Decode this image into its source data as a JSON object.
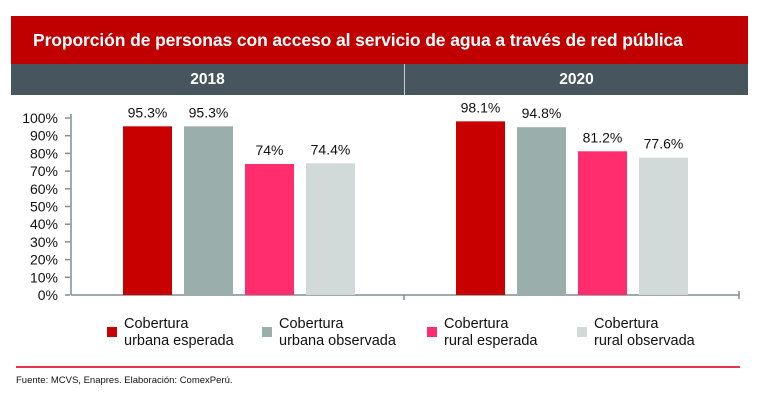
{
  "title": "Proporción de personas con acceso al servicio de agua a través de red pública",
  "source": "Fuente: MCVS, Enapres. Elaboración: ComexPerú.",
  "colors": {
    "title_bg": "#c00000",
    "year_bar_bg": "#47555e",
    "urbana_esperada": "#c80000",
    "urbana_observada": "#9aafac",
    "rural_esperada": "#ff2d6e",
    "rural_observada": "#d2dad9",
    "rule": "#e8334a"
  },
  "legend": [
    {
      "label_line1": "Cobertura",
      "label_line2": "urbana esperada",
      "color": "#c80000"
    },
    {
      "label_line1": "Cobertura",
      "label_line2": "urbana observada",
      "color": "#9aafac"
    },
    {
      "label_line1": "Cobertura",
      "label_line2": "rural esperada",
      "color": "#ff2d6e"
    },
    {
      "label_line1": "Cobertura",
      "label_line2": "rural observada",
      "color": "#d2dad9"
    }
  ],
  "chart_data": {
    "type": "bar",
    "title": "Proporción de personas con acceso al servicio de agua a través de red pública",
    "xlabel": "",
    "ylabel": "",
    "ylim": [
      0,
      100
    ],
    "yticks": [
      "0%",
      "10%",
      "20%",
      "30%",
      "40%",
      "50%",
      "60%",
      "70%",
      "80%",
      "90%",
      "100%"
    ],
    "categories": [
      "2018",
      "2020"
    ],
    "series": [
      {
        "name": "Cobertura urbana esperada",
        "values": [
          95.3,
          98.1
        ],
        "labels": [
          "95.3%",
          "98.1%"
        ],
        "color": "#c80000"
      },
      {
        "name": "Cobertura urbana observada",
        "values": [
          95.3,
          94.8
        ],
        "labels": [
          "95.3%",
          "94.8%"
        ],
        "color": "#9aafac"
      },
      {
        "name": "Cobertura rural esperada",
        "values": [
          74.0,
          81.2
        ],
        "labels": [
          "74%",
          "81.2%"
        ],
        "color": "#ff2d6e"
      },
      {
        "name": "Cobertura rural observada",
        "values": [
          74.4,
          77.6
        ],
        "labels": [
          "74.4%",
          "77.6%"
        ],
        "color": "#d2dad9"
      }
    ],
    "grid": false,
    "legend_position": "bottom"
  }
}
